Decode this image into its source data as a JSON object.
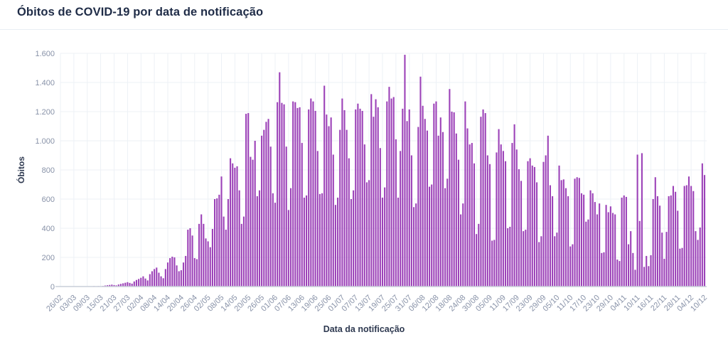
{
  "header": {
    "title": "Óbitos de COVID-19 por data de notificação"
  },
  "colors": {
    "background": "#ffffff",
    "title_text": "#1f2c47",
    "axis_title_text": "#2e3950",
    "tick_text": "#8892a8",
    "gridline": "#edf1f6",
    "axis_line": "#c9ced8",
    "divider": "#e8eef4",
    "bar": "#9c42b8"
  },
  "chart_data": {
    "type": "bar",
    "title": "Óbitos de COVID-19 por data de notificação",
    "xlabel": "Data da notificação",
    "ylabel": "Óbitos",
    "ylim": [
      0,
      1600
    ],
    "grid": true,
    "legend": "none",
    "frequency": "daily",
    "bar_color": "#9c42b8",
    "y_tick_values": [
      0,
      200,
      400,
      600,
      800,
      1000,
      1200,
      1400,
      1600
    ],
    "y_tick_labels": [
      "0",
      "200",
      "400",
      "600",
      "800",
      "1.000",
      "1.200",
      "1.400",
      "1.600"
    ],
    "x_tick_every_n_bars": 6,
    "x_tick_labels": [
      "26/02",
      "03/03",
      "09/03",
      "15/03",
      "21/03",
      "27/03",
      "02/04",
      "08/04",
      "14/04",
      "20/04",
      "26/04",
      "02/05",
      "08/05",
      "14/05",
      "20/05",
      "26/05",
      "01/06",
      "07/06",
      "13/06",
      "19/06",
      "25/06",
      "01/07",
      "07/07",
      "13/07",
      "19/07",
      "25/07",
      "31/07",
      "06/08",
      "12/08",
      "18/08",
      "24/08",
      "30/08",
      "05/09",
      "11/09",
      "17/09",
      "23/09",
      "29/09",
      "05/10",
      "11/10",
      "17/10",
      "23/10",
      "29/10",
      "04/11",
      "10/11",
      "16/11",
      "22/11",
      "28/11",
      "04/12",
      "10/12"
    ],
    "values": [
      0,
      0,
      0,
      0,
      0,
      0,
      0,
      0,
      0,
      0,
      0,
      0,
      0,
      1,
      2,
      3,
      2,
      3,
      2,
      4,
      7,
      9,
      11,
      13,
      10,
      8,
      14,
      18,
      22,
      26,
      30,
      25,
      20,
      35,
      45,
      52,
      60,
      70,
      55,
      42,
      85,
      105,
      120,
      130,
      95,
      70,
      57,
      120,
      165,
      195,
      205,
      200,
      145,
      105,
      112,
      165,
      210,
      390,
      400,
      350,
      195,
      188,
      430,
      495,
      430,
      330,
      310,
      270,
      395,
      600,
      605,
      630,
      755,
      480,
      390,
      600,
      880,
      845,
      815,
      825,
      660,
      430,
      480,
      1185,
      1190,
      890,
      870,
      1000,
      620,
      660,
      1035,
      1075,
      1130,
      1150,
      960,
      640,
      575,
      1265,
      1470,
      1260,
      1250,
      960,
      525,
      675,
      1270,
      1265,
      1225,
      1230,
      985,
      610,
      625,
      1215,
      1290,
      1270,
      1205,
      930,
      635,
      640,
      1378,
      1180,
      1100,
      1160,
      905,
      560,
      610,
      1075,
      1290,
      1210,
      1075,
      880,
      600,
      660,
      1215,
      1255,
      1220,
      1205,
      975,
      715,
      730,
      1320,
      1165,
      1285,
      1230,
      950,
      610,
      680,
      1270,
      1370,
      1290,
      1300,
      1010,
      610,
      930,
      1220,
      1590,
      1135,
      1215,
      900,
      545,
      570,
      1095,
      1440,
      1240,
      1150,
      1070,
      685,
      700,
      1255,
      1270,
      1035,
      1160,
      1060,
      675,
      740,
      1355,
      1200,
      1195,
      1050,
      870,
      495,
      570,
      1270,
      1085,
      975,
      985,
      845,
      360,
      430,
      1165,
      1215,
      1190,
      900,
      840,
      315,
      320,
      920,
      1080,
      975,
      930,
      860,
      400,
      410,
      985,
      1113,
      940,
      805,
      725,
      380,
      390,
      860,
      880,
      830,
      820,
      715,
      305,
      345,
      855,
      900,
      1035,
      695,
      620,
      345,
      370,
      830,
      730,
      735,
      675,
      620,
      275,
      290,
      740,
      750,
      745,
      640,
      630,
      445,
      460,
      660,
      640,
      580,
      495,
      570,
      230,
      235,
      560,
      510,
      550,
      505,
      495,
      185,
      175,
      610,
      625,
      615,
      290,
      380,
      230,
      115,
      905,
      450,
      915,
      135,
      210,
      140,
      215,
      600,
      750,
      620,
      555,
      370,
      190,
      375,
      620,
      625,
      690,
      650,
      520,
      260,
      265,
      690,
      695,
      755,
      690,
      655,
      380,
      320,
      405,
      845,
      765
    ]
  }
}
